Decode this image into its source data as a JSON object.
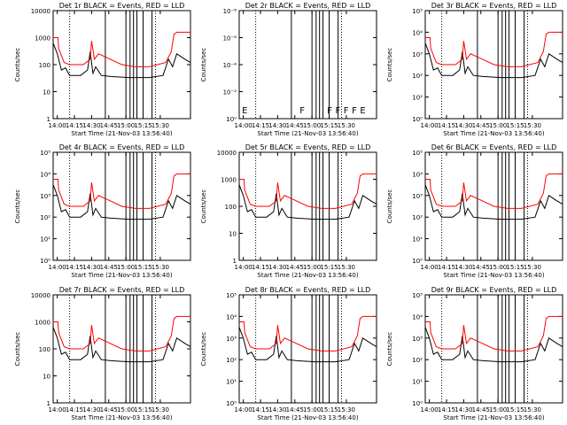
{
  "chart_data": [
    {
      "type": "line",
      "title": "Det 1r BLACK = Events, RED = LLD",
      "xlabel": "Start Time (21-Nov-03 13:56:40)",
      "ylabel": "Counts/sec",
      "xticks": [
        "14:00",
        "14:15",
        "14:30",
        "14:45",
        "15:00",
        "15:15",
        "15:30"
      ],
      "yticks": [
        "1",
        "10",
        "100",
        "1000",
        "10000"
      ],
      "ylim": [
        1,
        10000
      ],
      "yscale": "log",
      "markers": []
    },
    {
      "type": "line",
      "title": "Det 2r BLACK = Events, RED = LLD",
      "xlabel": "Start Time (21-Nov-03 13:56:40)",
      "ylabel": "Counts/sec",
      "xticks": [
        "14:00",
        "14:15",
        "14:30",
        "14:45",
        "15:00",
        "15:15",
        "15:30"
      ],
      "yticks": [
        "10⁰",
        "10⁻²",
        "10⁻⁴",
        "10⁻⁶",
        "10⁻⁸"
      ],
      "ylim": [
        1,
        1e-08
      ],
      "yscale": "log",
      "markers": [
        "E",
        "F",
        "F",
        "F",
        "F",
        "F",
        "E"
      ]
    },
    {
      "type": "line",
      "title": "Det 3r BLACK = Events, RED = LLD",
      "xlabel": "Start Time (21-Nov-03 13:56:40)",
      "ylabel": "Counts/sec",
      "xticks": [
        "14:00",
        "14:15",
        "14:30",
        "14:45",
        "15:00",
        "15:15",
        "15:30"
      ],
      "yticks": [
        "10⁰",
        "10¹",
        "10²",
        "10³",
        "10⁴",
        "10⁵"
      ],
      "ylim": [
        1,
        100000
      ],
      "yscale": "log",
      "markers": []
    },
    {
      "type": "line",
      "title": "Det 4r BLACK = Events, RED = LLD",
      "xlabel": "Start Time (21-Nov-03 13:56:40)",
      "ylabel": "Counts/sec",
      "xticks": [
        "14:00",
        "14:15",
        "14:30",
        "14:45",
        "15:00",
        "15:15",
        "15:30"
      ],
      "yticks": [
        "10⁰",
        "10¹",
        "10²",
        "10³",
        "10⁴",
        "10⁵"
      ],
      "ylim": [
        1,
        100000
      ],
      "yscale": "log",
      "markers": []
    },
    {
      "type": "line",
      "title": "Det 5r BLACK = Events, RED = LLD",
      "xlabel": "Start Time (21-Nov-03 13:56:40)",
      "ylabel": "Counts/sec",
      "xticks": [
        "14:00",
        "14:15",
        "14:30",
        "14:45",
        "15:00",
        "15:15",
        "15:30"
      ],
      "yticks": [
        "1",
        "10",
        "100",
        "1000",
        "10000"
      ],
      "ylim": [
        1,
        10000
      ],
      "yscale": "log",
      "markers": []
    },
    {
      "type": "line",
      "title": "Det 6r BLACK = Events, RED = LLD",
      "xlabel": "Start Time (21-Nov-03 13:56:40)",
      "ylabel": "Counts/sec",
      "xticks": [
        "14:00",
        "14:15",
        "14:30",
        "14:45",
        "15:00",
        "15:15",
        "15:30"
      ],
      "yticks": [
        "10⁰",
        "10¹",
        "10²",
        "10³",
        "10⁴",
        "10⁵"
      ],
      "ylim": [
        1,
        100000
      ],
      "yscale": "log",
      "markers": []
    },
    {
      "type": "line",
      "title": "Det 7r BLACK = Events, RED = LLD",
      "xlabel": "Start Time (21-Nov-03 13:56:40)",
      "ylabel": "Counts/sec",
      "xticks": [
        "14:00",
        "14:15",
        "14:30",
        "14:45",
        "15:00",
        "15:15",
        "15:30"
      ],
      "yticks": [
        "1",
        "10",
        "100",
        "1000",
        "10000"
      ],
      "ylim": [
        1,
        10000
      ],
      "yscale": "log",
      "markers": []
    },
    {
      "type": "line",
      "title": "Det 8r BLACK = Events, RED = LLD",
      "xlabel": "Start Time (21-Nov-03 13:56:40)",
      "ylabel": "Counts/sec",
      "xticks": [
        "14:00",
        "14:15",
        "14:30",
        "14:45",
        "15:00",
        "15:15",
        "15:30"
      ],
      "yticks": [
        "10⁰",
        "10¹",
        "10²",
        "10³",
        "10⁴",
        "10⁵"
      ],
      "ylim": [
        1,
        100000
      ],
      "yscale": "log",
      "markers": []
    },
    {
      "type": "line",
      "title": "Det 9r BLACK = Events, RED = LLD",
      "xlabel": "Start Time (21-Nov-03 13:56:40)",
      "ylabel": "Counts/sec",
      "xticks": [
        "14:00",
        "14:15",
        "14:30",
        "14:45",
        "15:00",
        "15:15",
        "15:30"
      ],
      "yticks": [
        "10⁰",
        "10¹",
        "10²",
        "10³",
        "10⁴",
        "10⁵"
      ],
      "ylim": [
        1,
        100000
      ],
      "yscale": "log",
      "markers": []
    }
  ],
  "colors": {
    "events": "#000000",
    "lld": "#ff0000"
  }
}
